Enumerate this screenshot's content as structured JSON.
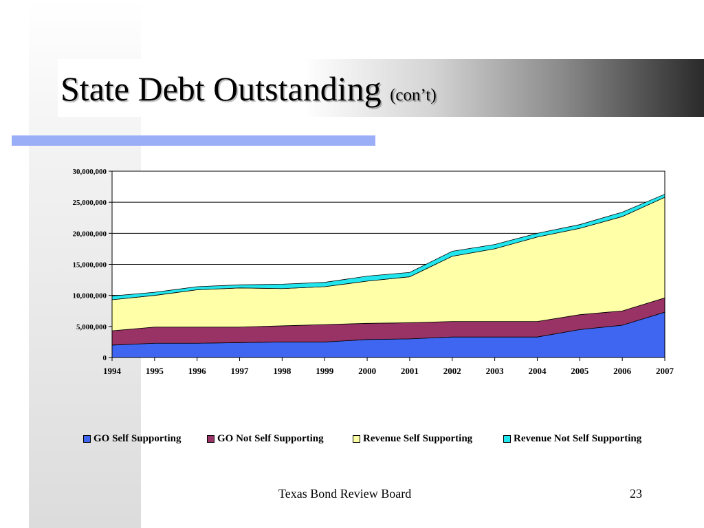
{
  "slide": {
    "title_main": "State Debt Outstanding",
    "title_sub": "(con’t)",
    "footer": "Texas Bond Review Board",
    "page_number": "23"
  },
  "chart_data": {
    "type": "area",
    "stacked": true,
    "title": "",
    "xlabel": "",
    "ylabel": "",
    "x": [
      "1994",
      "1995",
      "1996",
      "1997",
      "1998",
      "1999",
      "2000",
      "2001",
      "2002",
      "2003",
      "2004",
      "2005",
      "2006",
      "2007"
    ],
    "ylim": [
      0,
      30000000
    ],
    "yticks": [
      0,
      5000000,
      10000000,
      15000000,
      20000000,
      25000000,
      30000000
    ],
    "ytick_labels": [
      "0",
      "5,000,000",
      "10,000,000",
      "15,000,000",
      "20,000,000",
      "25,000,000",
      "30,000,000"
    ],
    "grid": true,
    "legend_position": "bottom",
    "series": [
      {
        "name": "GO Self Supporting",
        "color": "#3f66f0",
        "values": [
          2000000,
          2300000,
          2300000,
          2400000,
          2500000,
          2500000,
          2900000,
          3000000,
          3300000,
          3300000,
          3300000,
          4500000,
          5200000,
          7300000
        ]
      },
      {
        "name": "GO Not Self Supporting",
        "color": "#993366",
        "values": [
          2300000,
          2600000,
          2600000,
          2500000,
          2600000,
          2800000,
          2600000,
          2600000,
          2500000,
          2500000,
          2500000,
          2400000,
          2300000,
          2300000
        ]
      },
      {
        "name": "Revenue Self Supporting",
        "color": "#ffffa8",
        "values": [
          5000000,
          5100000,
          6000000,
          6300000,
          6000000,
          6100000,
          6800000,
          7400000,
          10500000,
          11700000,
          13600000,
          13900000,
          15200000,
          16200000
        ]
      },
      {
        "name": "Revenue Not Self Supporting",
        "color": "#22e6ee",
        "values": [
          600000,
          500000,
          500000,
          500000,
          700000,
          700000,
          800000,
          700000,
          800000,
          700000,
          600000,
          600000,
          700000,
          500000
        ]
      }
    ]
  }
}
